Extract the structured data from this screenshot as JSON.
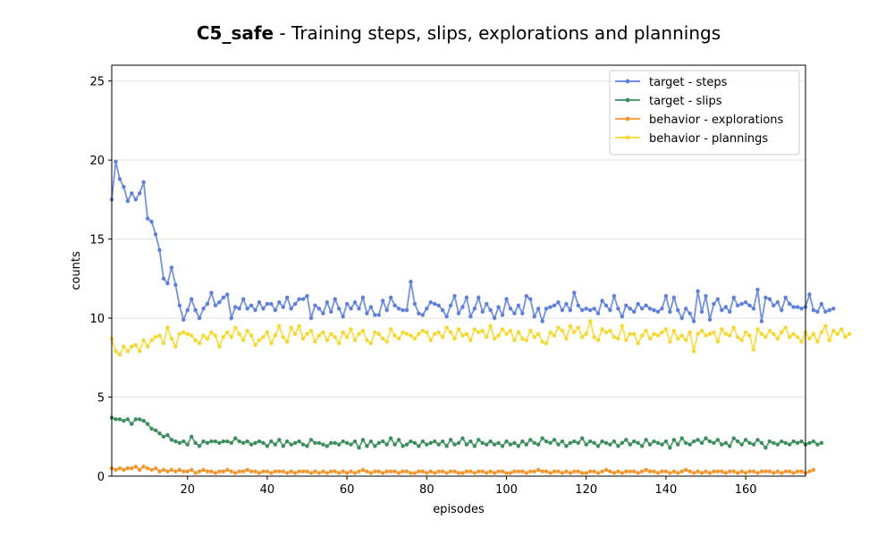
{
  "chart_data": {
    "type": "line",
    "title_bold": "C5_safe",
    "title_rest": " - Training steps, slips, explorations and plannings",
    "xlabel": "episodes",
    "ylabel": "counts",
    "xlim": [
      1,
      175
    ],
    "ylim": [
      0,
      26
    ],
    "xticks": [
      20,
      40,
      60,
      80,
      100,
      120,
      140,
      160
    ],
    "yticks": [
      0,
      5,
      10,
      15,
      20,
      25
    ],
    "grid": "horizontal",
    "legend_position": "top-right",
    "series": [
      {
        "name": "target - steps",
        "color": "#5b7fe0",
        "values": [
          17.5,
          19.9,
          18.8,
          18.3,
          17.4,
          17.9,
          17.5,
          17.9,
          18.6,
          16.3,
          16.1,
          15.3,
          14.3,
          12.5,
          12.2,
          13.2,
          12.1,
          10.8,
          9.9,
          10.5,
          11.2,
          10.5,
          10.0,
          10.6,
          10.9,
          11.6,
          10.8,
          11.0,
          11.3,
          11.5,
          10.0,
          10.7,
          10.6,
          11.2,
          10.6,
          10.8,
          10.5,
          11.0,
          10.6,
          10.9,
          10.9,
          10.5,
          11.0,
          10.7,
          11.3,
          10.6,
          10.9,
          11.2,
          11.2,
          11.4,
          10.0,
          10.8,
          10.6,
          10.3,
          11.0,
          10.4,
          11.2,
          10.6,
          10.1,
          10.9,
          10.6,
          11.0,
          10.6,
          11.3,
          10.3,
          10.7,
          10.2,
          10.2,
          11.1,
          10.5,
          11.3,
          10.8,
          10.6,
          10.5,
          10.5,
          12.3,
          10.9,
          10.3,
          10.2,
          10.6,
          11.0,
          10.9,
          10.8,
          10.5,
          10.1,
          10.8,
          11.4,
          10.3,
          10.7,
          11.3,
          10.1,
          10.6,
          11.3,
          10.4,
          10.9,
          10.5,
          10.0,
          10.7,
          10.2,
          11.2,
          10.6,
          10.3,
          10.8,
          10.3,
          11.4,
          11.2,
          10.1,
          10.6,
          9.8,
          10.6,
          10.7,
          10.8,
          11.0,
          10.5,
          10.9,
          10.5,
          11.6,
          10.8,
          10.5,
          10.6,
          10.5,
          10.6,
          10.3,
          11.1,
          10.8,
          10.5,
          11.4,
          10.6,
          10.1,
          10.8,
          10.6,
          10.4,
          10.9,
          10.6,
          10.8,
          10.6,
          10.5,
          10.4,
          10.6,
          11.4,
          10.4,
          11.3,
          10.5,
          10.0,
          10.6,
          10.3,
          9.8,
          11.7,
          10.4,
          11.4,
          9.9,
          10.9,
          11.2,
          10.5,
          10.7,
          10.4,
          11.3,
          10.8,
          10.9,
          11.0,
          10.8,
          10.6,
          11.8,
          9.8,
          11.3,
          11.2,
          10.8,
          11.0,
          10.5,
          11.3,
          10.9,
          10.7,
          10.7,
          10.6,
          10.7,
          11.5,
          10.5,
          10.4,
          10.9,
          10.4,
          10.5,
          10.6
        ]
      },
      {
        "name": "target - slips",
        "color": "#3a8f5c",
        "values": [
          3.7,
          3.6,
          3.6,
          3.5,
          3.6,
          3.3,
          3.6,
          3.6,
          3.5,
          3.3,
          3.0,
          2.9,
          2.7,
          2.5,
          2.6,
          2.3,
          2.2,
          2.1,
          2.2,
          2.0,
          2.5,
          2.1,
          1.9,
          2.2,
          2.1,
          2.2,
          2.2,
          2.1,
          2.2,
          2.2,
          2.1,
          2.4,
          2.2,
          2.1,
          2.2,
          2.0,
          2.1,
          2.2,
          2.1,
          1.9,
          2.2,
          2.0,
          2.3,
          1.9,
          2.2,
          2.0,
          2.1,
          2.2,
          2.0,
          1.9,
          2.3,
          2.1,
          2.1,
          2.0,
          1.9,
          2.1,
          2.1,
          2.0,
          2.2,
          2.1,
          2.0,
          2.2,
          1.8,
          2.3,
          1.9,
          2.2,
          1.9,
          2.1,
          2.2,
          2.0,
          2.4,
          2.0,
          2.3,
          1.9,
          2.0,
          2.2,
          2.1,
          1.9,
          2.2,
          2.0,
          2.1,
          2.2,
          2.0,
          2.2,
          1.9,
          2.3,
          2.0,
          2.1,
          2.4,
          2.0,
          2.2,
          1.9,
          2.3,
          2.1,
          2.0,
          2.2,
          2.0,
          2.1,
          1.9,
          2.2,
          2.0,
          2.1,
          1.9,
          2.2,
          2.0,
          2.3,
          2.1,
          2.0,
          2.4,
          2.2,
          2.1,
          2.3,
          2.0,
          2.2,
          1.9,
          2.1,
          2.2,
          2.1,
          2.4,
          2.0,
          2.2,
          2.1,
          1.9,
          2.2,
          2.1,
          2.0,
          2.2,
          1.9,
          2.1,
          2.3,
          2.0,
          2.2,
          2.1,
          1.9,
          2.3,
          2.0,
          2.2,
          2.1,
          2.0,
          2.2,
          1.8,
          2.3,
          2.0,
          2.4,
          2.1,
          2.0,
          2.2,
          2.3,
          2.1,
          2.4,
          2.2,
          2.1,
          2.3,
          2.0,
          2.1,
          1.9,
          2.4,
          2.2,
          2.0,
          2.3,
          2.1,
          2.0,
          2.3,
          2.1,
          1.8,
          2.2,
          2.1,
          2.0,
          2.2,
          2.1,
          2.0,
          2.2,
          2.1,
          2.2,
          2.0,
          2.1,
          2.2,
          2.0,
          2.1
        ]
      },
      {
        "name": "behavior - explorations",
        "color": "#f5962d",
        "values": [
          0.5,
          0.4,
          0.5,
          0.4,
          0.5,
          0.5,
          0.6,
          0.4,
          0.6,
          0.5,
          0.4,
          0.5,
          0.3,
          0.4,
          0.3,
          0.4,
          0.3,
          0.4,
          0.3,
          0.3,
          0.4,
          0.2,
          0.3,
          0.4,
          0.3,
          0.3,
          0.2,
          0.3,
          0.3,
          0.4,
          0.3,
          0.2,
          0.3,
          0.3,
          0.4,
          0.3,
          0.3,
          0.2,
          0.3,
          0.3,
          0.2,
          0.3,
          0.3,
          0.3,
          0.2,
          0.3,
          0.2,
          0.3,
          0.3,
          0.3,
          0.2,
          0.3,
          0.2,
          0.3,
          0.2,
          0.3,
          0.3,
          0.2,
          0.3,
          0.2,
          0.3,
          0.2,
          0.3,
          0.4,
          0.3,
          0.2,
          0.3,
          0.3,
          0.2,
          0.3,
          0.3,
          0.3,
          0.2,
          0.3,
          0.3,
          0.2,
          0.2,
          0.3,
          0.3,
          0.2,
          0.3,
          0.2,
          0.3,
          0.3,
          0.2,
          0.3,
          0.3,
          0.2,
          0.2,
          0.3,
          0.3,
          0.2,
          0.3,
          0.3,
          0.2,
          0.3,
          0.2,
          0.3,
          0.3,
          0.2,
          0.2,
          0.3,
          0.3,
          0.3,
          0.2,
          0.3,
          0.3,
          0.4,
          0.3,
          0.3,
          0.2,
          0.3,
          0.3,
          0.2,
          0.3,
          0.2,
          0.3,
          0.3,
          0.2,
          0.2,
          0.3,
          0.3,
          0.2,
          0.3,
          0.4,
          0.3,
          0.2,
          0.3,
          0.2,
          0.3,
          0.3,
          0.3,
          0.2,
          0.3,
          0.4,
          0.3,
          0.3,
          0.2,
          0.3,
          0.3,
          0.2,
          0.3,
          0.2,
          0.3,
          0.4,
          0.3,
          0.2,
          0.3,
          0.2,
          0.3,
          0.2,
          0.3,
          0.3,
          0.3,
          0.2,
          0.3,
          0.3,
          0.2,
          0.3,
          0.2,
          0.3,
          0.3,
          0.2,
          0.3,
          0.3,
          0.3,
          0.2,
          0.3,
          0.2,
          0.3,
          0.3,
          0.2,
          0.3,
          0.3,
          0.2,
          0.3,
          0.4
        ]
      },
      {
        "name": "behavior - plannings",
        "color": "#f7d82b",
        "values": [
          8.7,
          7.9,
          7.7,
          8.2,
          7.9,
          8.2,
          8.3,
          7.9,
          8.6,
          8.2,
          8.6,
          8.8,
          8.9,
          8.4,
          9.4,
          8.7,
          8.2,
          9.0,
          9.1,
          9.0,
          8.9,
          8.6,
          8.4,
          8.9,
          8.7,
          9.1,
          8.9,
          8.2,
          8.8,
          9.1,
          8.8,
          9.4,
          9.0,
          8.6,
          9.2,
          8.9,
          8.3,
          8.6,
          8.8,
          9.1,
          8.4,
          8.9,
          9.5,
          8.8,
          8.5,
          9.4,
          9.0,
          9.5,
          8.7,
          9.0,
          9.2,
          8.5,
          8.9,
          9.1,
          8.6,
          9.0,
          8.8,
          8.4,
          9.1,
          8.8,
          9.3,
          8.6,
          9.0,
          9.2,
          8.6,
          8.4,
          9.1,
          9.0,
          8.7,
          8.5,
          9.3,
          8.9,
          8.7,
          9.1,
          9.0,
          8.9,
          8.7,
          9.0,
          9.2,
          9.1,
          8.6,
          9.0,
          9.1,
          8.8,
          9.4,
          9.1,
          8.7,
          9.3,
          8.9,
          9.0,
          8.6,
          9.3,
          9.1,
          9.2,
          8.8,
          9.5,
          8.7,
          8.9,
          9.3,
          9.0,
          9.2,
          8.6,
          9.1,
          8.7,
          8.6,
          9.2,
          8.8,
          9.0,
          8.5,
          8.4,
          9.1,
          8.9,
          9.4,
          9.2,
          8.7,
          9.5,
          9.1,
          9.4,
          8.8,
          9.0,
          9.8,
          8.8,
          8.6,
          9.3,
          9.1,
          9.2,
          8.8,
          8.7,
          9.5,
          8.6,
          9.0,
          9.0,
          8.4,
          8.9,
          9.2,
          8.7,
          9.0,
          8.9,
          9.1,
          9.3,
          8.5,
          9.2,
          8.7,
          8.9,
          8.6,
          9.1,
          7.9,
          9.0,
          9.2,
          8.9,
          9.0,
          9.1,
          8.5,
          9.3,
          9.0,
          8.9,
          9.4,
          8.8,
          8.6,
          9.1,
          8.9,
          8.0,
          9.3,
          9.0,
          8.8,
          9.2,
          9.0,
          8.7,
          9.1,
          9.4,
          8.8,
          9.0,
          8.8,
          8.5,
          9.1,
          8.7,
          9.0,
          8.5,
          9.1,
          9.5,
          8.6,
          9.2,
          9.0,
          9.3,
          8.8,
          9.0
        ]
      }
    ]
  }
}
